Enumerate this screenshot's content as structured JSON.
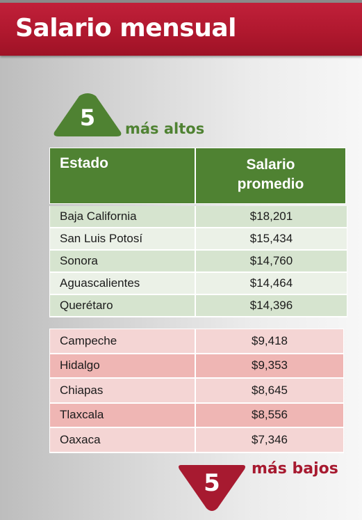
{
  "title": "Salario mensual",
  "high": {
    "badge_number": "5",
    "label": "más altos",
    "color": "#4f8232"
  },
  "low": {
    "badge_number": "5",
    "label": "más bajos",
    "color": "#a71a30"
  },
  "table": {
    "headers": [
      "Estado",
      "Salario promedio"
    ],
    "header_col2_lines": [
      "Salario",
      "promedio"
    ],
    "top_rows": [
      {
        "state": "Baja California",
        "salary": "$18,201"
      },
      {
        "state": "San Luis Potosí",
        "salary": "$15,434"
      },
      {
        "state": "Sonora",
        "salary": "$14,760"
      },
      {
        "state": "Aguascalientes",
        "salary": "$14,464"
      },
      {
        "state": "Querétaro",
        "salary": "$14,396"
      }
    ],
    "bottom_rows": [
      {
        "state": "Campeche",
        "salary": "$9,418"
      },
      {
        "state": "Hidalgo",
        "salary": "$9,353"
      },
      {
        "state": "Chiapas",
        "salary": "$8,645"
      },
      {
        "state": "Tlaxcala",
        "salary": "$8,556"
      },
      {
        "state": "Oaxaca",
        "salary": "$7,346"
      }
    ]
  },
  "colors": {
    "header_red": "#b0182e",
    "green": "#4f8232",
    "green_row_odd": "#d6e4cf",
    "green_row_even": "#ebf1e7",
    "pink_row_odd": "#f4d5d4",
    "pink_row_even": "#efb6b4"
  }
}
